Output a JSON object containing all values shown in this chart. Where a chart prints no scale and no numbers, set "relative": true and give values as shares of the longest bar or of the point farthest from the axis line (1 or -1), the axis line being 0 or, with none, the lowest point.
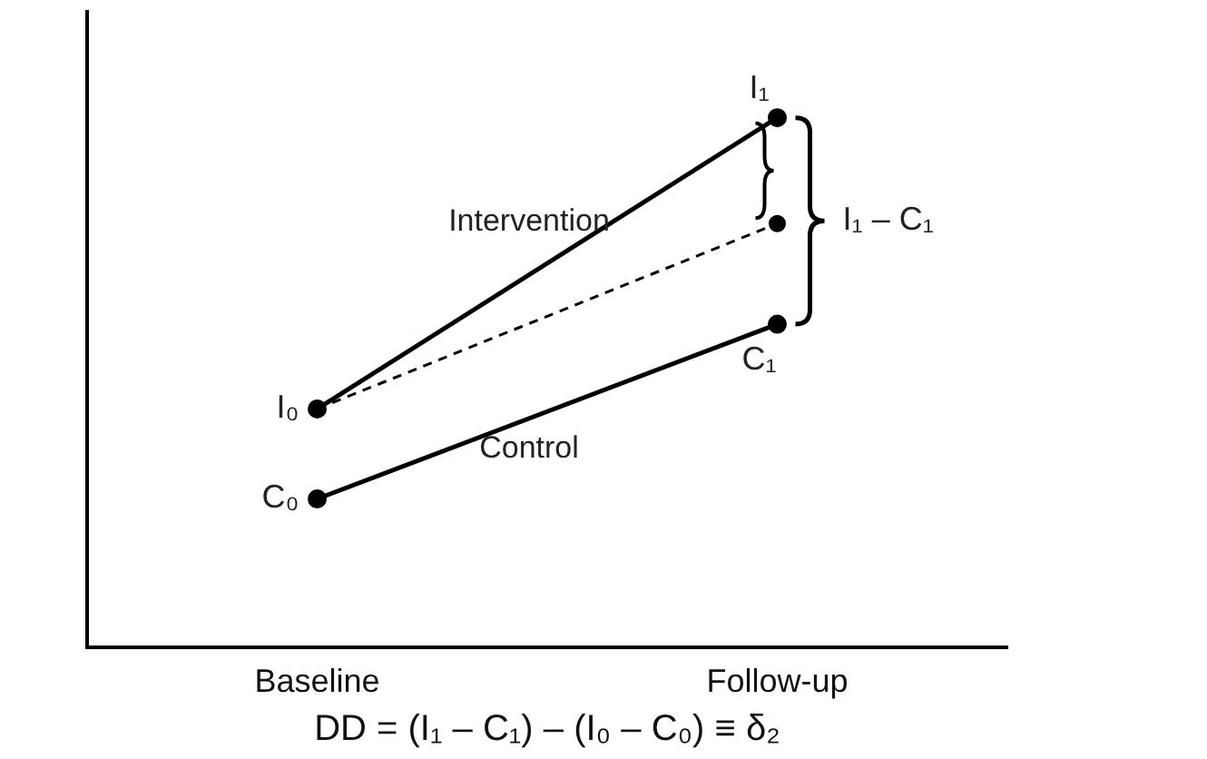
{
  "chart_data": {
    "type": "line",
    "categories": [
      "Baseline",
      "Follow-up"
    ],
    "xlabel": "DD = (I₁ – C₁) – (I₀ – C₀) ≡ δ₂",
    "series": [
      {
        "name": "Intervention",
        "color": "#000000",
        "values": [
          0.45,
          1
        ]
      },
      {
        "color": "#000000",
        "values": [
          0.45,
          0.8
        ],
        "line_style": "dashed"
      },
      {
        "name": "Control",
        "color": "#000000",
        "values": [
          0.28,
          0.61
        ]
      }
    ],
    "relative": true,
    "annotations": [
      "I₁ – C₁",
      {
        "text": "I₁",
        "x": "Follow-up",
        "y": 1
      },
      {
        "text": "C₁",
        "x": "Follow-up",
        "y": 0.61
      },
      {
        "text": "I₀",
        "x": "Baseline",
        "y": 0.45
      },
      {
        "text": "C₀",
        "x": "Baseline",
        "y": 0.28
      }
    ],
    "marker": "circle"
  }
}
